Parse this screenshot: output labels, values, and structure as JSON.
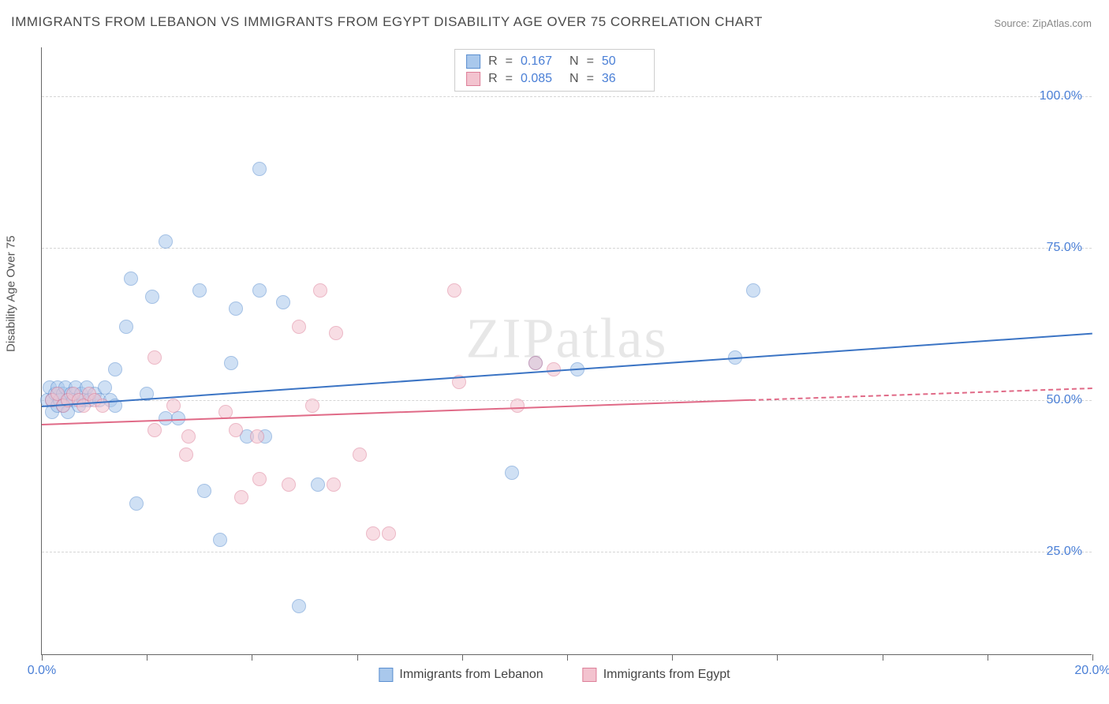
{
  "title": "IMMIGRANTS FROM LEBANON VS IMMIGRANTS FROM EGYPT DISABILITY AGE OVER 75 CORRELATION CHART",
  "source_label": "Source:",
  "source_name": "ZipAtlas.com",
  "watermark": "ZIPatlas",
  "y_axis_title": "Disability Age Over 75",
  "chart": {
    "type": "scatter",
    "background_color": "#ffffff",
    "grid_color": "#d5d5d5",
    "axis_color": "#666666",
    "xlim": [
      0,
      20
    ],
    "ylim": [
      8,
      108
    ],
    "x_ticks": [
      0,
      2,
      4,
      6,
      8,
      10,
      12,
      14,
      16,
      18,
      20
    ],
    "x_tick_labels": {
      "0": "0.0%",
      "20": "20.0%"
    },
    "y_grid": [
      25,
      50,
      75,
      100
    ],
    "y_tick_labels": {
      "25": "25.0%",
      "50": "50.0%",
      "75": "75.0%",
      "100": "100.0%"
    },
    "marker_radius": 9,
    "marker_opacity": 0.55,
    "series": [
      {
        "name": "Immigrants from Lebanon",
        "fill_color": "#a9c8ec",
        "stroke_color": "#5b8fd0",
        "line_color": "#3b74c4",
        "R": "0.167",
        "N": "50",
        "trend": {
          "x0": 0,
          "y0": 49,
          "x1": 20,
          "y1": 61,
          "solid_until_x": 20
        },
        "points": [
          [
            0.1,
            50
          ],
          [
            0.15,
            52
          ],
          [
            0.2,
            48
          ],
          [
            0.2,
            50
          ],
          [
            0.25,
            51
          ],
          [
            0.3,
            49
          ],
          [
            0.3,
            52
          ],
          [
            0.35,
            50
          ],
          [
            0.4,
            51
          ],
          [
            0.4,
            49
          ],
          [
            0.45,
            52
          ],
          [
            0.5,
            50
          ],
          [
            0.5,
            48
          ],
          [
            0.55,
            51
          ],
          [
            0.6,
            50
          ],
          [
            0.65,
            52
          ],
          [
            0.7,
            49
          ],
          [
            0.75,
            51
          ],
          [
            0.8,
            50
          ],
          [
            0.85,
            52
          ],
          [
            0.9,
            50
          ],
          [
            1.0,
            51
          ],
          [
            1.1,
            50
          ],
          [
            1.2,
            52
          ],
          [
            1.3,
            50
          ],
          [
            1.4,
            49
          ],
          [
            1.6,
            62
          ],
          [
            1.4,
            55
          ],
          [
            1.7,
            70
          ],
          [
            1.8,
            33
          ],
          [
            2.0,
            51
          ],
          [
            2.1,
            67
          ],
          [
            2.35,
            47
          ],
          [
            2.35,
            76
          ],
          [
            2.6,
            47
          ],
          [
            3.0,
            68
          ],
          [
            3.1,
            35
          ],
          [
            3.4,
            27
          ],
          [
            3.6,
            56
          ],
          [
            3.7,
            65
          ],
          [
            4.15,
            88
          ],
          [
            3.9,
            44
          ],
          [
            4.25,
            44
          ],
          [
            4.15,
            68
          ],
          [
            4.6,
            66
          ],
          [
            4.9,
            16
          ],
          [
            5.25,
            36
          ],
          [
            8.95,
            38
          ],
          [
            9.4,
            56
          ],
          [
            10.2,
            55
          ],
          [
            13.55,
            68
          ],
          [
            13.2,
            57
          ]
        ]
      },
      {
        "name": "Immigrants from Egypt",
        "fill_color": "#f3c3cf",
        "stroke_color": "#dd7f99",
        "line_color": "#e06a87",
        "R": "0.085",
        "N": "36",
        "trend": {
          "x0": 0,
          "y0": 46,
          "x1": 20,
          "y1": 52,
          "solid_until_x": 13.5
        },
        "points": [
          [
            0.2,
            50
          ],
          [
            0.3,
            51
          ],
          [
            0.4,
            49
          ],
          [
            0.5,
            50
          ],
          [
            0.6,
            51
          ],
          [
            0.7,
            50
          ],
          [
            0.8,
            49
          ],
          [
            0.9,
            51
          ],
          [
            1.0,
            50
          ],
          [
            1.15,
            49
          ],
          [
            2.15,
            45
          ],
          [
            2.15,
            57
          ],
          [
            2.5,
            49
          ],
          [
            2.75,
            41
          ],
          [
            2.8,
            44
          ],
          [
            3.5,
            48
          ],
          [
            3.7,
            45
          ],
          [
            3.8,
            34
          ],
          [
            4.1,
            44
          ],
          [
            4.15,
            37
          ],
          [
            4.7,
            36
          ],
          [
            5.15,
            49
          ],
          [
            5.3,
            68
          ],
          [
            4.9,
            62
          ],
          [
            5.55,
            36
          ],
          [
            5.6,
            61
          ],
          [
            6.05,
            41
          ],
          [
            6.3,
            28
          ],
          [
            6.6,
            28
          ],
          [
            7.85,
            68
          ],
          [
            7.95,
            53
          ],
          [
            9.05,
            49
          ],
          [
            9.75,
            55
          ],
          [
            9.4,
            56
          ]
        ]
      }
    ]
  },
  "stats_legend": {
    "R_label": "R",
    "N_label": "N",
    "equals": "="
  },
  "bottom_legend": {
    "items": [
      "Immigrants from Lebanon",
      "Immigrants from Egypt"
    ]
  }
}
